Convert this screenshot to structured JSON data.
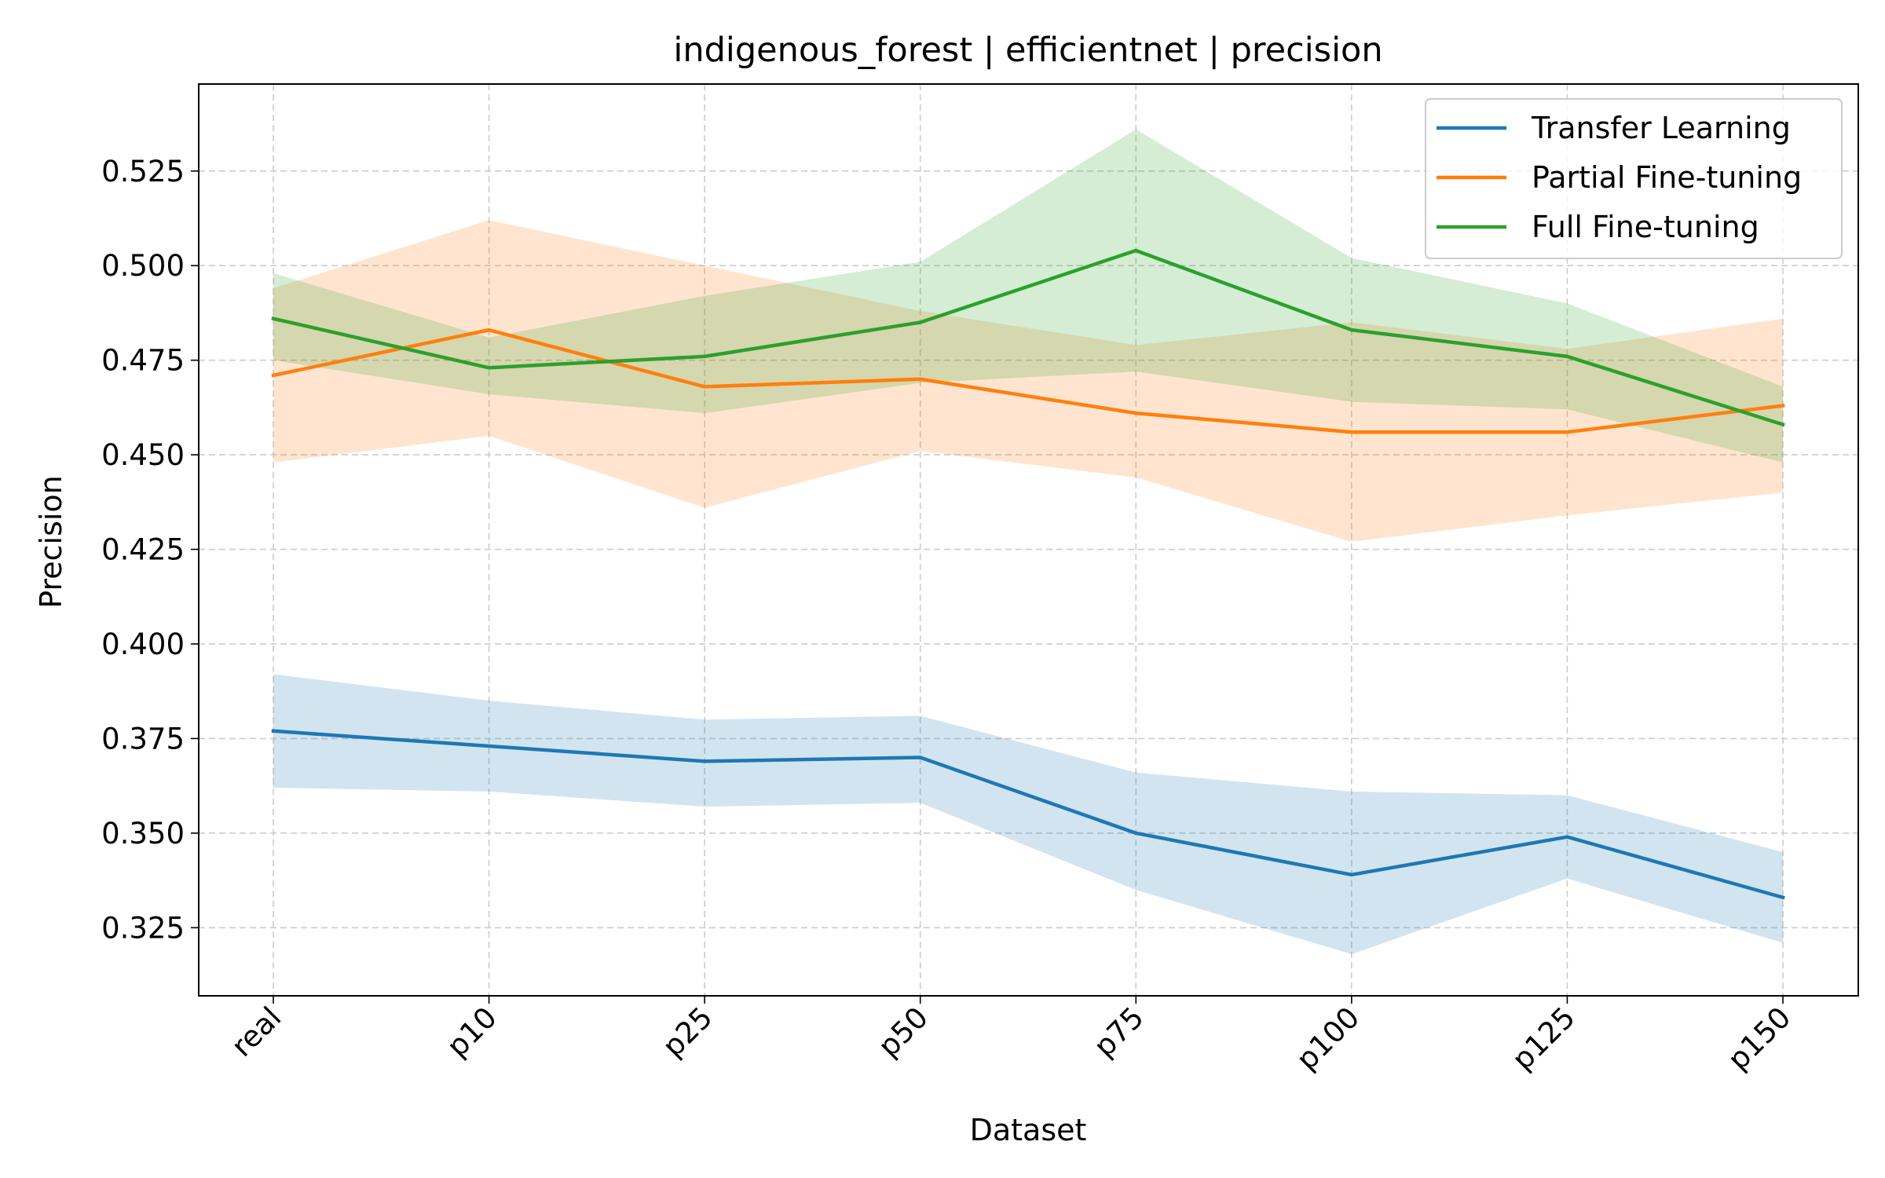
{
  "chart_data": {
    "type": "line",
    "title": "indigenous_forest | efficientnet | precision",
    "xlabel": "Dataset",
    "ylabel": "Precision",
    "categories": [
      "real",
      "p10",
      "p25",
      "p50",
      "p75",
      "p100",
      "p125",
      "p150"
    ],
    "ylim": [
      0.307,
      0.548
    ],
    "yticks": [
      0.325,
      0.35,
      0.375,
      0.4,
      0.425,
      0.45,
      0.475,
      0.5,
      0.525
    ],
    "ytick_labels": [
      "0.325",
      "0.350",
      "0.375",
      "0.400",
      "0.425",
      "0.450",
      "0.475",
      "0.500",
      "0.525"
    ],
    "grid": true,
    "legend_position": "top-right",
    "series": [
      {
        "name": "Transfer Learning",
        "color": "#1f77b4",
        "values": [
          0.377,
          0.373,
          0.369,
          0.37,
          0.35,
          0.339,
          0.349,
          0.333
        ],
        "upper": [
          0.392,
          0.385,
          0.38,
          0.381,
          0.366,
          0.361,
          0.36,
          0.345
        ],
        "lower": [
          0.362,
          0.361,
          0.357,
          0.358,
          0.335,
          0.318,
          0.338,
          0.321
        ]
      },
      {
        "name": "Partial Fine-tuning",
        "color": "#ff7f0e",
        "values": [
          0.471,
          0.483,
          0.468,
          0.47,
          0.461,
          0.456,
          0.456,
          0.463
        ],
        "upper": [
          0.494,
          0.512,
          0.5,
          0.488,
          0.479,
          0.485,
          0.478,
          0.486
        ],
        "lower": [
          0.448,
          0.455,
          0.436,
          0.451,
          0.444,
          0.427,
          0.434,
          0.44
        ]
      },
      {
        "name": "Full Fine-tuning",
        "color": "#2ca02c",
        "values": [
          0.486,
          0.473,
          0.476,
          0.485,
          0.504,
          0.483,
          0.476,
          0.458
        ],
        "upper": [
          0.498,
          0.481,
          0.492,
          0.501,
          0.536,
          0.502,
          0.49,
          0.468
        ],
        "lower": [
          0.475,
          0.466,
          0.461,
          0.469,
          0.472,
          0.464,
          0.462,
          0.448
        ]
      }
    ]
  }
}
